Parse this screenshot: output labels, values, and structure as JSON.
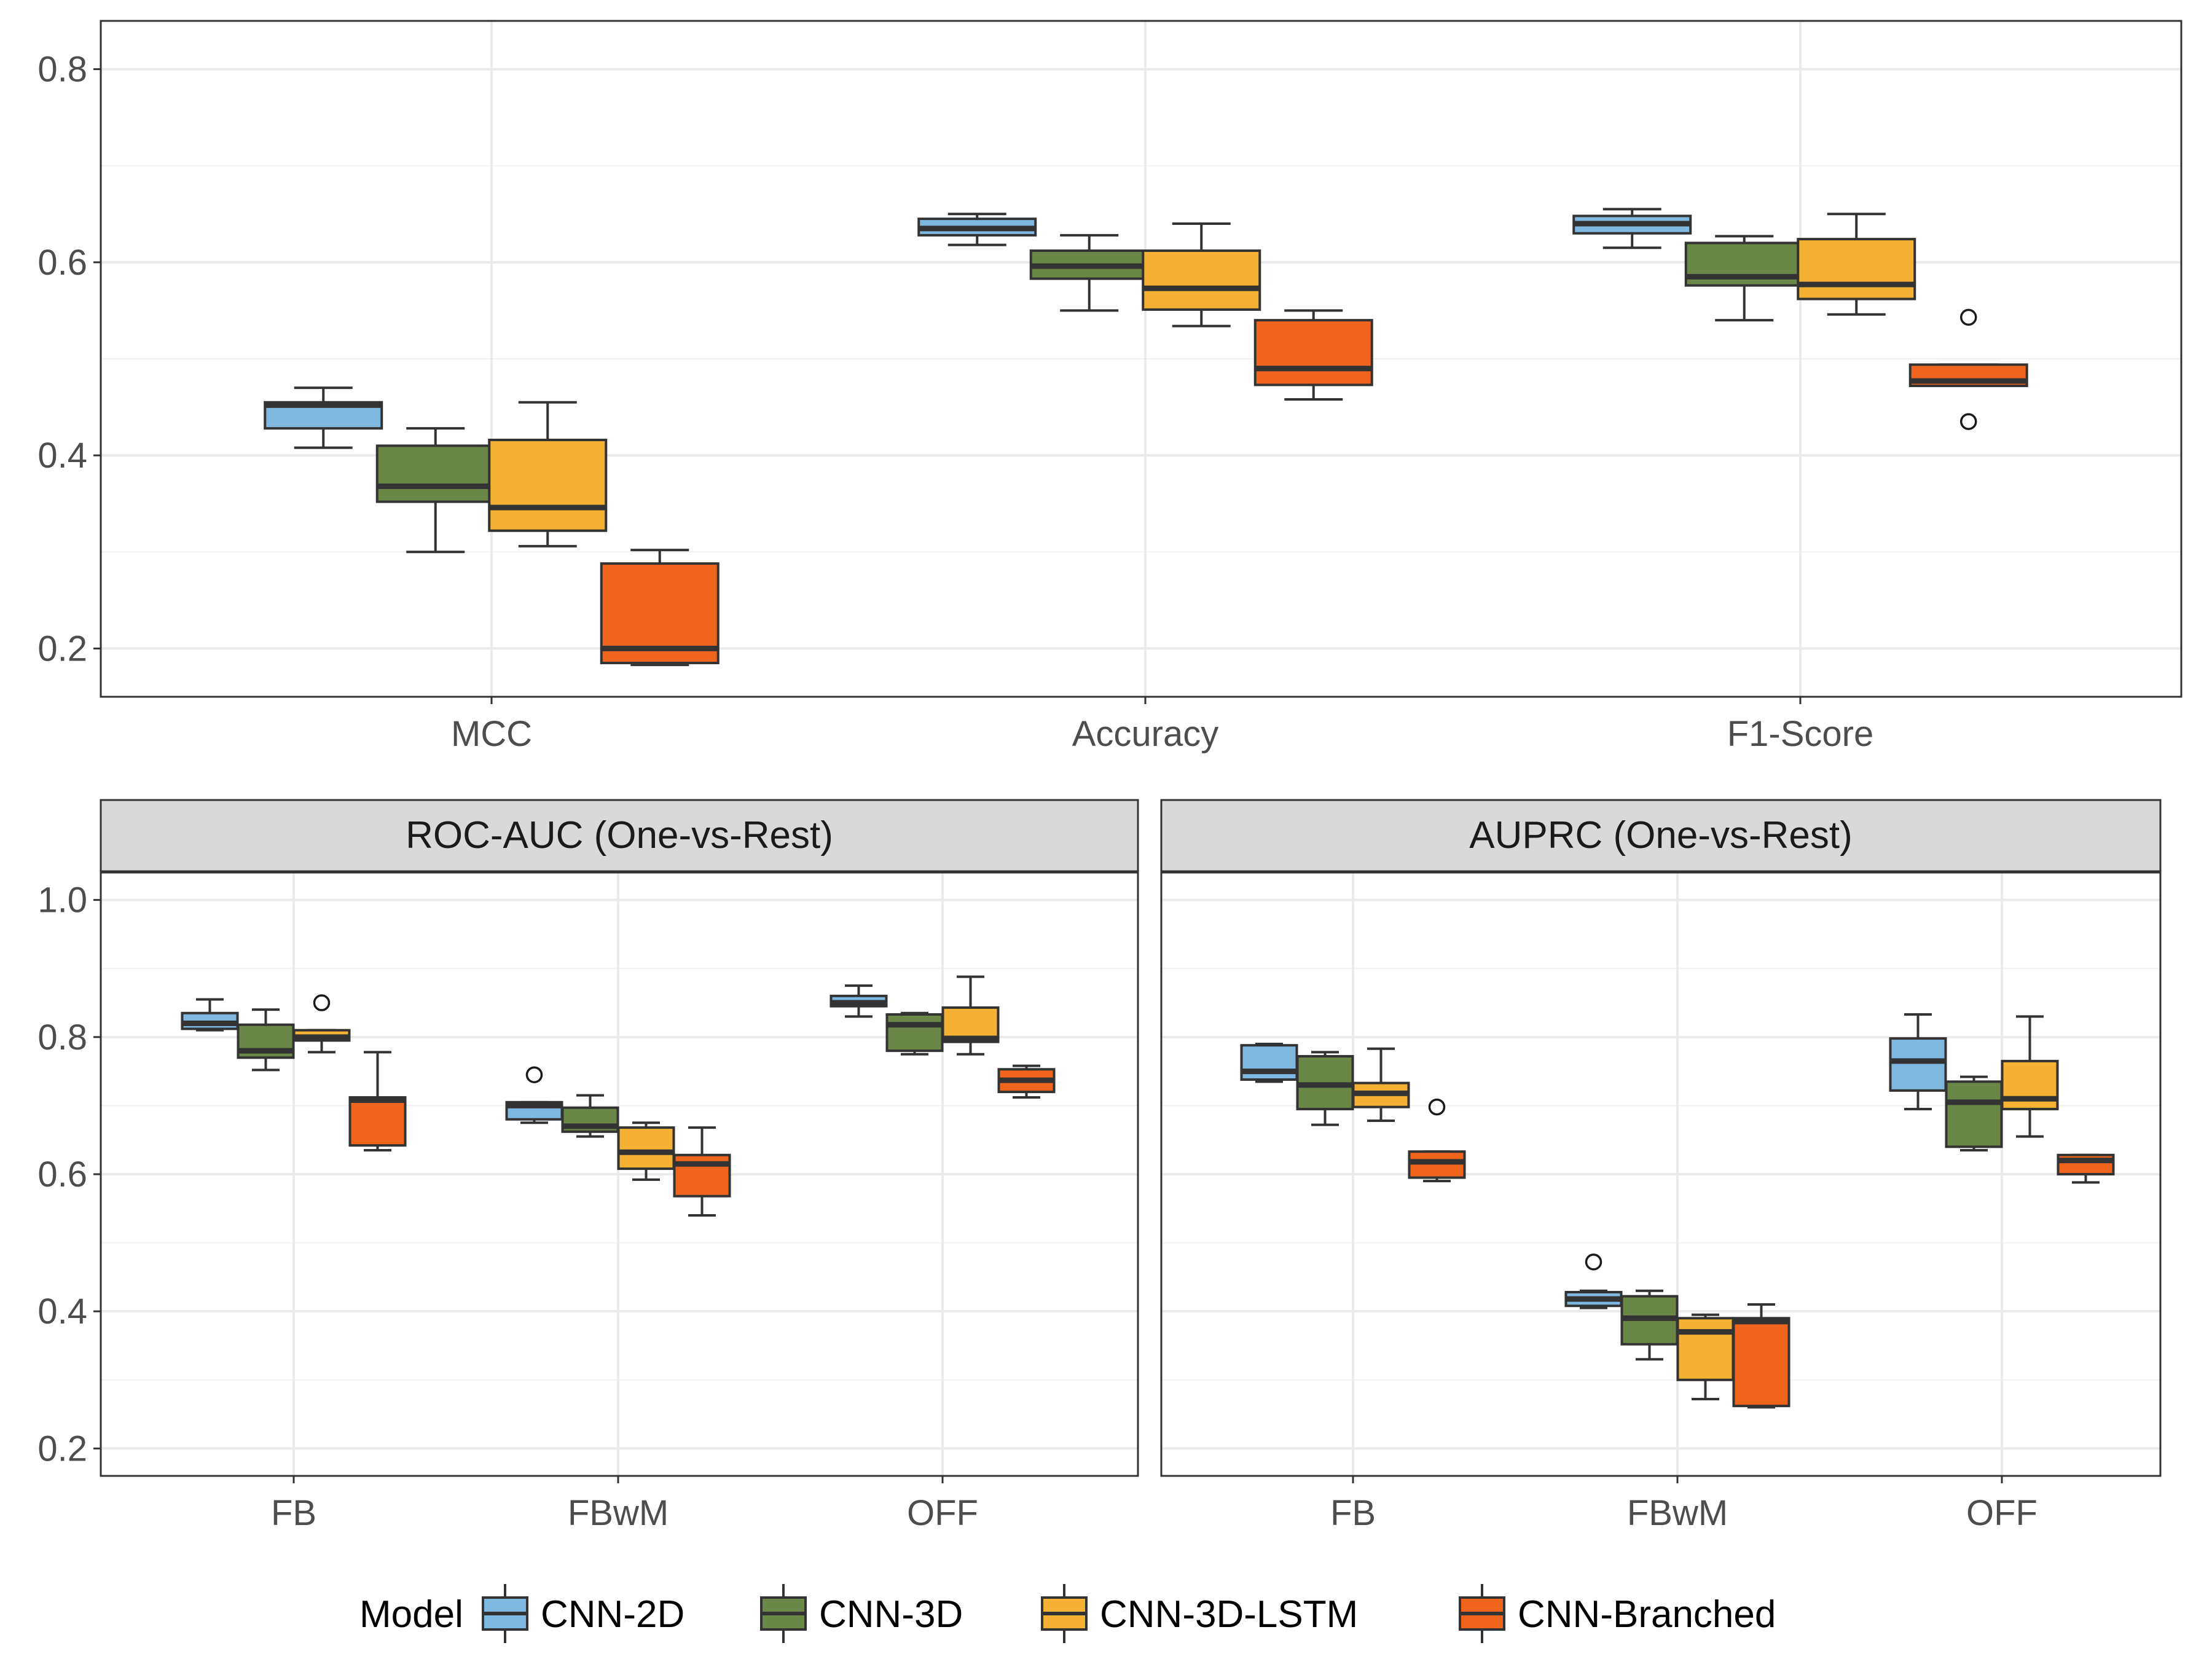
{
  "chart_data": [
    {
      "type": "box",
      "title": "",
      "xlabel": "",
      "ylabel": "",
      "categories": [
        "MCC",
        "Accuracy",
        "F1-Score"
      ],
      "ylim": [
        0.15,
        0.85
      ],
      "yticks": [
        "0.2",
        "0.4",
        "0.6",
        "0.8"
      ],
      "grid": true,
      "series": [
        {
          "name": "CNN-2D",
          "boxes": [
            {
              "min": 0.408,
              "q1": 0.428,
              "median": 0.452,
              "q3": 0.455,
              "max": 0.47,
              "outliers": []
            },
            {
              "min": 0.618,
              "q1": 0.628,
              "median": 0.635,
              "q3": 0.645,
              "max": 0.65,
              "outliers": []
            },
            {
              "min": 0.615,
              "q1": 0.63,
              "median": 0.64,
              "q3": 0.648,
              "max": 0.655,
              "outliers": []
            }
          ]
        },
        {
          "name": "CNN-3D",
          "boxes": [
            {
              "min": 0.3,
              "q1": 0.352,
              "median": 0.368,
              "q3": 0.41,
              "max": 0.428,
              "outliers": []
            },
            {
              "min": 0.55,
              "q1": 0.583,
              "median": 0.596,
              "q3": 0.612,
              "max": 0.628,
              "outliers": []
            },
            {
              "min": 0.54,
              "q1": 0.576,
              "median": 0.585,
              "q3": 0.62,
              "max": 0.627,
              "outliers": []
            }
          ]
        },
        {
          "name": "CNN-3D-LSTM",
          "boxes": [
            {
              "min": 0.306,
              "q1": 0.322,
              "median": 0.346,
              "q3": 0.416,
              "max": 0.455,
              "outliers": []
            },
            {
              "min": 0.534,
              "q1": 0.551,
              "median": 0.573,
              "q3": 0.612,
              "max": 0.64,
              "outliers": []
            },
            {
              "min": 0.546,
              "q1": 0.562,
              "median": 0.577,
              "q3": 0.624,
              "max": 0.65,
              "outliers": []
            }
          ]
        },
        {
          "name": "CNN-Branched",
          "boxes": [
            {
              "min": 0.183,
              "q1": 0.185,
              "median": 0.2,
              "q3": 0.288,
              "max": 0.302,
              "outliers": []
            },
            {
              "min": 0.458,
              "q1": 0.473,
              "median": 0.49,
              "q3": 0.54,
              "max": 0.55,
              "outliers": []
            },
            {
              "min": 0.472,
              "q1": 0.472,
              "median": 0.477,
              "q3": 0.494,
              "max": 0.494,
              "outliers": [
                0.543,
                0.435
              ]
            }
          ]
        }
      ]
    },
    {
      "type": "box",
      "title": "ROC-AUC (One-vs-Rest)",
      "xlabel": "",
      "ylabel": "",
      "categories": [
        "FB",
        "FBwM",
        "OFF"
      ],
      "ylim": [
        0.16,
        1.04
      ],
      "yticks": [
        "0.2",
        "0.4",
        "0.6",
        "0.8",
        "1.0"
      ],
      "grid": true,
      "series": [
        {
          "name": "CNN-2D",
          "boxes": [
            {
              "min": 0.81,
              "q1": 0.812,
              "median": 0.82,
              "q3": 0.835,
              "max": 0.855,
              "outliers": []
            },
            {
              "min": 0.675,
              "q1": 0.68,
              "median": 0.7,
              "q3": 0.705,
              "max": 0.705,
              "outliers": [
                0.745
              ]
            },
            {
              "min": 0.83,
              "q1": 0.845,
              "median": 0.85,
              "q3": 0.86,
              "max": 0.875,
              "outliers": []
            }
          ]
        },
        {
          "name": "CNN-3D",
          "boxes": [
            {
              "min": 0.752,
              "q1": 0.77,
              "median": 0.78,
              "q3": 0.818,
              "max": 0.84,
              "outliers": []
            },
            {
              "min": 0.655,
              "q1": 0.662,
              "median": 0.67,
              "q3": 0.697,
              "max": 0.715,
              "outliers": []
            },
            {
              "min": 0.775,
              "q1": 0.78,
              "median": 0.818,
              "q3": 0.833,
              "max": 0.835,
              "outliers": []
            }
          ]
        },
        {
          "name": "CNN-3D-LSTM",
          "boxes": [
            {
              "min": 0.778,
              "q1": 0.795,
              "median": 0.8,
              "q3": 0.81,
              "max": 0.81,
              "outliers": [
                0.85
              ]
            },
            {
              "min": 0.592,
              "q1": 0.608,
              "median": 0.632,
              "q3": 0.668,
              "max": 0.675,
              "outliers": []
            },
            {
              "min": 0.775,
              "q1": 0.793,
              "median": 0.798,
              "q3": 0.843,
              "max": 0.888,
              "outliers": []
            }
          ]
        },
        {
          "name": "CNN-Branched",
          "boxes": [
            {
              "min": 0.635,
              "q1": 0.642,
              "median": 0.708,
              "q3": 0.712,
              "max": 0.778,
              "outliers": []
            },
            {
              "min": 0.54,
              "q1": 0.568,
              "median": 0.615,
              "q3": 0.628,
              "max": 0.668,
              "outliers": []
            },
            {
              "min": 0.712,
              "q1": 0.72,
              "median": 0.737,
              "q3": 0.753,
              "max": 0.758,
              "outliers": []
            }
          ]
        }
      ]
    },
    {
      "type": "box",
      "title": "AUPRC (One-vs-Rest)",
      "xlabel": "",
      "ylabel": "",
      "categories": [
        "FB",
        "FBwM",
        "OFF"
      ],
      "ylim": [
        0.16,
        1.04
      ],
      "yticks": [
        "0.2",
        "0.4",
        "0.6",
        "0.8",
        "1.0"
      ],
      "grid": true,
      "series": [
        {
          "name": "CNN-2D",
          "boxes": [
            {
              "min": 0.735,
              "q1": 0.738,
              "median": 0.75,
              "q3": 0.788,
              "max": 0.79,
              "outliers": []
            },
            {
              "min": 0.405,
              "q1": 0.408,
              "median": 0.418,
              "q3": 0.428,
              "max": 0.43,
              "outliers": [
                0.472
              ]
            },
            {
              "min": 0.695,
              "q1": 0.722,
              "median": 0.765,
              "q3": 0.798,
              "max": 0.833,
              "outliers": []
            }
          ]
        },
        {
          "name": "CNN-3D",
          "boxes": [
            {
              "min": 0.672,
              "q1": 0.695,
              "median": 0.73,
              "q3": 0.772,
              "max": 0.778,
              "outliers": []
            },
            {
              "min": 0.33,
              "q1": 0.352,
              "median": 0.39,
              "q3": 0.422,
              "max": 0.43,
              "outliers": []
            },
            {
              "min": 0.635,
              "q1": 0.64,
              "median": 0.705,
              "q3": 0.735,
              "max": 0.742,
              "outliers": []
            }
          ]
        },
        {
          "name": "CNN-3D-LSTM",
          "boxes": [
            {
              "min": 0.678,
              "q1": 0.698,
              "median": 0.718,
              "q3": 0.733,
              "max": 0.783,
              "outliers": []
            },
            {
              "min": 0.272,
              "q1": 0.3,
              "median": 0.37,
              "q3": 0.39,
              "max": 0.395,
              "outliers": []
            },
            {
              "min": 0.655,
              "q1": 0.695,
              "median": 0.71,
              "q3": 0.765,
              "max": 0.83,
              "outliers": []
            }
          ]
        },
        {
          "name": "CNN-Branched",
          "boxes": [
            {
              "min": 0.59,
              "q1": 0.595,
              "median": 0.618,
              "q3": 0.633,
              "max": 0.633,
              "outliers": [
                0.698
              ]
            },
            {
              "min": 0.26,
              "q1": 0.262,
              "median": 0.385,
              "q3": 0.39,
              "max": 0.41,
              "outliers": []
            },
            {
              "min": 0.588,
              "q1": 0.6,
              "median": 0.62,
              "q3": 0.628,
              "max": 0.628,
              "outliers": []
            }
          ]
        }
      ]
    }
  ],
  "legend": {
    "title": "Model",
    "items": [
      "CNN-2D",
      "CNN-3D",
      "CNN-3D-LSTM",
      "CNN-Branched"
    ],
    "placement": "bottom"
  },
  "colors": {
    "CNN-2D": "#7fb8e0",
    "CNN-3D": "#6b8747",
    "CNN-3D-LSTM": "#f5b133",
    "CNN-Branched": "#f0651e",
    "box_stroke": "#333333",
    "grid": "#ebebeb",
    "strip": "#d9d9d9"
  }
}
